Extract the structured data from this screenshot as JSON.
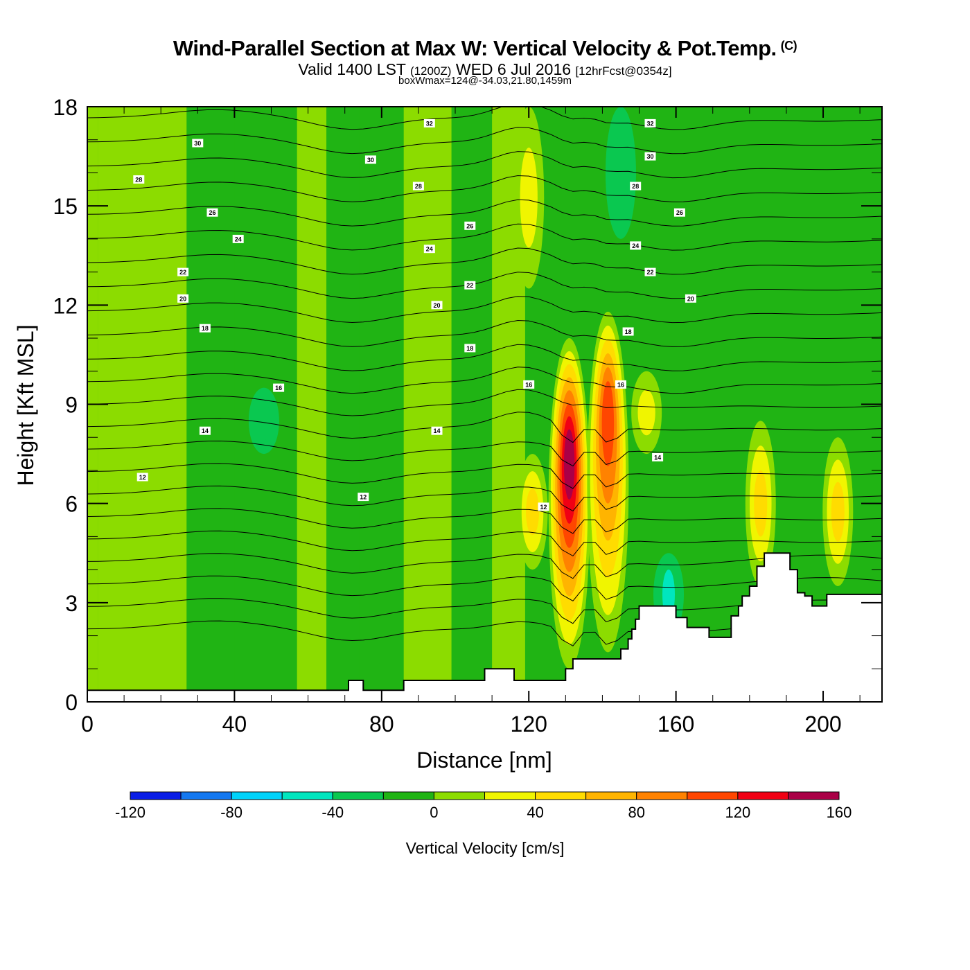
{
  "chart_data": {
    "type": "heatmap",
    "title": "Wind-Parallel Section at Max W: Vertical Velocity & Pot.Temp.",
    "title_mark": "(C)",
    "subtitle": {
      "valid": "Valid 1400 LST",
      "zulu": "(1200Z)",
      "date": "WED 6 Jul 2016",
      "forecast": "[12hrFcst@0354z]"
    },
    "subsubtitle": "boxWmax=124@-34.03,21.80,1459m",
    "xlabel": "Distance [nm]",
    "ylabel": "Height [Kft MSL]",
    "xlim": [
      0,
      216
    ],
    "ylim": [
      0,
      18
    ],
    "x_ticks": [
      "0",
      "40",
      "80",
      "120",
      "160",
      "200"
    ],
    "x_tick_values": [
      0,
      40,
      80,
      120,
      160,
      200
    ],
    "y_ticks": [
      "0",
      "3",
      "6",
      "9",
      "12",
      "15",
      "18"
    ],
    "y_tick_values": [
      0,
      3,
      6,
      9,
      12,
      15,
      18
    ],
    "colorbar": {
      "title": "Vertical Velocity [cm/s]",
      "levels": [
        -120,
        -100,
        -80,
        -60,
        -40,
        -20,
        0,
        20,
        40,
        60,
        80,
        100,
        120,
        140,
        160
      ],
      "tick_labels": [
        "-120",
        "-80",
        "-40",
        "0",
        "40",
        "80",
        "120",
        "160"
      ],
      "tick_values": [
        -120,
        -80,
        -40,
        0,
        40,
        80,
        120,
        160
      ],
      "colors": [
        "#0a1ee6",
        "#1478f0",
        "#00d2fa",
        "#00e6be",
        "#0ac850",
        "#20b414",
        "#8cdc00",
        "#f0f500",
        "#ffdc00",
        "#ffb400",
        "#ff8200",
        "#ff4600",
        "#f00014",
        "#aa0046"
      ]
    },
    "velocity_bands": [
      {
        "x_range": [
          0,
          3
        ],
        "value": 10
      },
      {
        "x_range": [
          3,
          27
        ],
        "value": 10
      },
      {
        "x_range": [
          27,
          40
        ],
        "value": -10
      },
      {
        "x_range": [
          40,
          57
        ],
        "value": -10
      },
      {
        "x_range": [
          57,
          65
        ],
        "value": 10
      },
      {
        "x_range": [
          65,
          74
        ],
        "value": -10
      },
      {
        "x_range": [
          74,
          86
        ],
        "value": -10
      },
      {
        "x_range": [
          86,
          99
        ],
        "value": 10
      },
      {
        "x_range": [
          99,
          110
        ],
        "value": -10
      },
      {
        "x_range": [
          110,
          119
        ],
        "value": 10
      }
    ],
    "updraft_cores": [
      {
        "x": 131,
        "y_range": [
          1.0,
          11.0
        ],
        "peak": 150,
        "peak_height": 7.5
      },
      {
        "x": 141.5,
        "y_range": [
          1.5,
          11.8
        ],
        "peak": 110,
        "peak_height": 9.0
      },
      {
        "x": 121,
        "y_range": [
          4.0,
          7.5
        ],
        "peak": 45
      },
      {
        "x": 152,
        "y_range": [
          7.5,
          10.0
        ],
        "peak": 40
      },
      {
        "x": 183,
        "y_range": [
          3.5,
          8.5
        ],
        "peak": 55
      },
      {
        "x": 204,
        "y_range": [
          3.5,
          8.0
        ],
        "peak": 55
      },
      {
        "x": 120,
        "y_range": [
          12.5,
          18.0
        ],
        "peak": 30
      }
    ],
    "downdraft_zones": [
      {
        "x": 158,
        "y_range": [
          2.0,
          4.5
        ],
        "value": -45
      },
      {
        "x": 145,
        "y_range": [
          14.0,
          18.0
        ],
        "value": -25
      },
      {
        "x": 48,
        "y_range": [
          7.5,
          9.5
        ],
        "value": -25
      }
    ],
    "theta_contour_labels": [
      {
        "x": 14,
        "y": 15.8,
        "text": "28"
      },
      {
        "x": 30,
        "y": 16.9,
        "text": "30"
      },
      {
        "x": 34,
        "y": 14.8,
        "text": "26"
      },
      {
        "x": 41,
        "y": 14.0,
        "text": "24"
      },
      {
        "x": 26,
        "y": 13.0,
        "text": "22"
      },
      {
        "x": 26,
        "y": 12.2,
        "text": "20"
      },
      {
        "x": 32,
        "y": 11.3,
        "text": "18"
      },
      {
        "x": 52,
        "y": 9.5,
        "text": "16"
      },
      {
        "x": 32,
        "y": 8.2,
        "text": "14"
      },
      {
        "x": 15,
        "y": 6.8,
        "text": "12"
      },
      {
        "x": 93,
        "y": 17.5,
        "text": "32"
      },
      {
        "x": 77,
        "y": 16.4,
        "text": "30"
      },
      {
        "x": 90,
        "y": 15.6,
        "text": "28"
      },
      {
        "x": 104,
        "y": 14.4,
        "text": "26"
      },
      {
        "x": 93,
        "y": 13.7,
        "text": "24"
      },
      {
        "x": 104,
        "y": 12.6,
        "text": "22"
      },
      {
        "x": 95,
        "y": 12.0,
        "text": "20"
      },
      {
        "x": 104,
        "y": 10.7,
        "text": "18"
      },
      {
        "x": 95,
        "y": 8.2,
        "text": "14"
      },
      {
        "x": 75,
        "y": 6.2,
        "text": "12"
      },
      {
        "x": 153,
        "y": 17.5,
        "text": "32"
      },
      {
        "x": 153,
        "y": 16.5,
        "text": "30"
      },
      {
        "x": 149,
        "y": 15.6,
        "text": "28"
      },
      {
        "x": 161,
        "y": 14.8,
        "text": "26"
      },
      {
        "x": 149,
        "y": 13.8,
        "text": "24"
      },
      {
        "x": 153,
        "y": 13.0,
        "text": "22"
      },
      {
        "x": 164,
        "y": 12.2,
        "text": "20"
      },
      {
        "x": 147,
        "y": 11.2,
        "text": "18"
      },
      {
        "x": 120,
        "y": 9.6,
        "text": "16"
      },
      {
        "x": 145,
        "y": 9.6,
        "text": "16"
      },
      {
        "x": 155,
        "y": 7.4,
        "text": "14"
      },
      {
        "x": 124,
        "y": 5.9,
        "text": "12"
      }
    ],
    "theta_levels": [
      10,
      11,
      12,
      13,
      14,
      15,
      16,
      17,
      18,
      19,
      20,
      21,
      22,
      23,
      24,
      25,
      26,
      27,
      28,
      29,
      30,
      31,
      32,
      33
    ],
    "terrain": {
      "x": [
        0,
        71,
        71,
        75,
        75,
        86,
        86,
        108,
        108,
        116,
        116,
        130,
        130,
        132,
        132,
        145,
        145,
        147,
        147,
        148,
        148,
        149,
        149,
        150,
        150,
        151,
        151,
        152,
        152,
        155,
        155,
        160,
        160,
        163,
        163,
        169,
        169,
        175,
        175,
        177,
        177,
        178,
        178,
        180,
        180,
        182,
        182,
        184,
        184,
        191,
        191,
        193,
        193,
        195,
        195,
        197,
        197,
        201,
        201,
        205,
        205,
        216
      ],
      "y": [
        0.35,
        0.35,
        0.65,
        0.65,
        0.35,
        0.35,
        0.65,
        0.65,
        1.0,
        1.0,
        0.65,
        0.65,
        1.0,
        1.0,
        1.3,
        1.3,
        1.6,
        1.6,
        1.9,
        1.9,
        2.2,
        2.2,
        2.5,
        2.5,
        2.9,
        2.9,
        2.9,
        2.9,
        2.9,
        2.9,
        2.9,
        2.9,
        2.55,
        2.55,
        2.25,
        2.25,
        1.95,
        1.95,
        2.6,
        2.6,
        2.9,
        2.9,
        3.2,
        3.2,
        3.5,
        3.5,
        4.1,
        4.1,
        4.5,
        4.5,
        4.0,
        4.0,
        3.3,
        3.3,
        3.2,
        3.2,
        2.9,
        2.9,
        3.25,
        3.25,
        3.25,
        3.25
      ]
    }
  }
}
